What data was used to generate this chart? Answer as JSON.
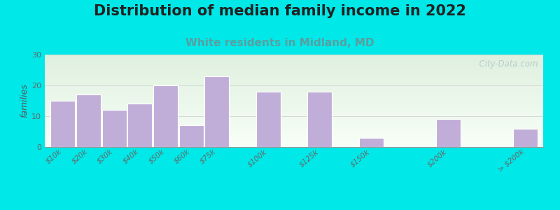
{
  "title": "Distribution of median family income in 2022",
  "subtitle": "White residents in Midland, MD",
  "ylabel": "families",
  "categories": [
    "$10k",
    "$20k",
    "$30k",
    "$40k",
    "$50k",
    "$60k",
    "$75k",
    "$100k",
    "$125k",
    "$150k",
    "$200k",
    "> $200k"
  ],
  "values": [
    15,
    17,
    12,
    14,
    20,
    7,
    23,
    18,
    18,
    3,
    9,
    6
  ],
  "bar_color": "#c0add8",
  "bar_edge_color": "#ffffff",
  "background_color": "#00e8e8",
  "plot_bg_top": "#dff0df",
  "plot_bg_bottom": "#f8fff8",
  "title_fontsize": 15,
  "subtitle_fontsize": 11,
  "subtitle_color": "#5a9ea0",
  "ylabel_fontsize": 9,
  "tick_fontsize": 7.5,
  "ylim": [
    0,
    30
  ],
  "yticks": [
    0,
    10,
    20,
    30
  ],
  "watermark": "  City-Data.com",
  "watermark_color": "#b8ccc8",
  "bar_positions": [
    0,
    1,
    2,
    3,
    4,
    5,
    6,
    8,
    10,
    12,
    15,
    18
  ],
  "bar_width": 0.95
}
